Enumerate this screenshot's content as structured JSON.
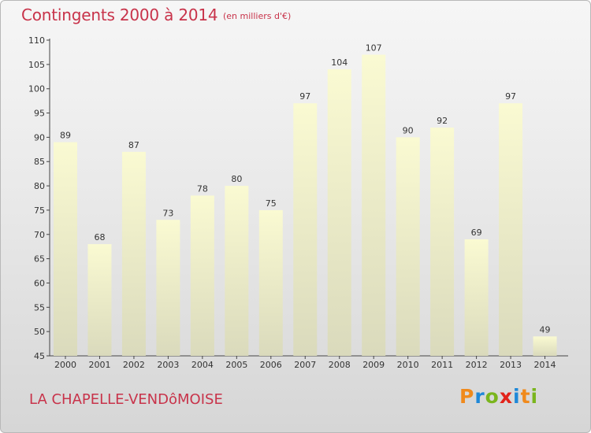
{
  "header": {
    "title": "Contingents 2000 à 2014",
    "subtitle": "(en milliers d'€)"
  },
  "footer": {
    "place": "LA CHAPELLE-VENDôMOISE",
    "logo_letters": [
      {
        "ch": "P",
        "color": "#f08a1c"
      },
      {
        "ch": "r",
        "color": "#1f88d8"
      },
      {
        "ch": "o",
        "color": "#7ab51d"
      },
      {
        "ch": "x",
        "color": "#e2231a"
      },
      {
        "ch": "i",
        "color": "#1f88d8"
      },
      {
        "ch": "t",
        "color": "#f08a1c"
      },
      {
        "ch": "i",
        "color": "#7ab51d"
      }
    ]
  },
  "chart_data": {
    "type": "bar",
    "title": "Contingents 2000 à 2014",
    "subtitle": "(en milliers d'€)",
    "categories": [
      "2000",
      "2001",
      "2002",
      "2003",
      "2004",
      "2005",
      "2006",
      "2007",
      "2008",
      "2009",
      "2010",
      "2011",
      "2012",
      "2013",
      "2014"
    ],
    "values": [
      89,
      68,
      87,
      73,
      78,
      80,
      75,
      97,
      104,
      107,
      90,
      92,
      69,
      97,
      49
    ],
    "ylim": [
      45,
      110
    ],
    "yticks": [
      45,
      50,
      55,
      60,
      65,
      70,
      75,
      80,
      85,
      90,
      95,
      100,
      105,
      110
    ],
    "grid": false,
    "bar_color_top": "#fafad2",
    "bar_color_bottom": "#dadabc",
    "text_color": "#c8334a"
  }
}
